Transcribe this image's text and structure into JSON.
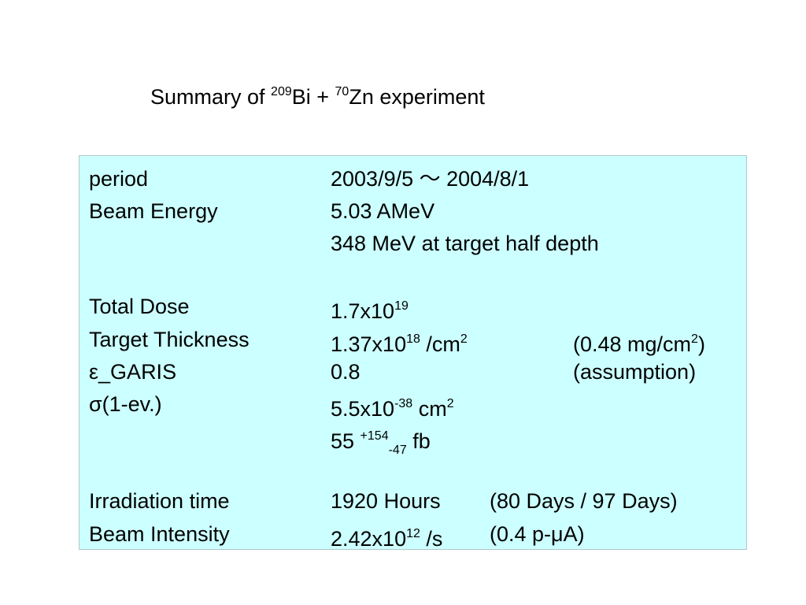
{
  "title": [
    "Summary of ",
    {
      "sup": "209"
    },
    "Bi + ",
    {
      "sup": "70"
    },
    "Zn experiment"
  ],
  "table": {
    "rows": [
      {
        "label": [
          "period"
        ],
        "value": [
          "2003/9/5 ～ 2004/8/1"
        ]
      },
      {
        "label": [
          "Beam Energy"
        ],
        "value": [
          "5.03 AMeV"
        ]
      },
      {
        "value": [
          "348 MeV at target half depth"
        ]
      },
      {
        "label": [
          "Total Dose"
        ],
        "value": [
          "1.7x10",
          {
            "sup": "19"
          }
        ]
      },
      {
        "label": [
          "Target Thickness"
        ],
        "value": [
          "1.37x10",
          {
            "sup": "18"
          },
          " /cm",
          {
            "sup": "2"
          }
        ],
        "note": [
          "(0.48 mg/cm",
          {
            "sup": "2"
          },
          ")"
        ]
      },
      {
        "label": [
          "ε_GARIS"
        ],
        "value": [
          "0.8"
        ],
        "note": [
          "(assumption)"
        ]
      },
      {
        "label": [
          "σ(1-ev.)"
        ],
        "value": [
          "5.5x10",
          {
            "sup": "-38"
          },
          " cm",
          {
            "sup": "2"
          }
        ]
      },
      {
        "value": [
          "55 ",
          {
            "sup": "+154"
          },
          {
            "sub": "-47"
          },
          " fb"
        ]
      },
      {
        "label": [
          "Irradiation time"
        ],
        "value": [
          "1920 Hours"
        ],
        "note": [
          "(80 Days / 97 Days)"
        ]
      },
      {
        "label": [
          "Beam Intensity"
        ],
        "value": [
          "2.42x10",
          {
            "sup": "12"
          },
          " /s"
        ],
        "note": [
          "(0.4 p-μA)"
        ]
      }
    ]
  }
}
